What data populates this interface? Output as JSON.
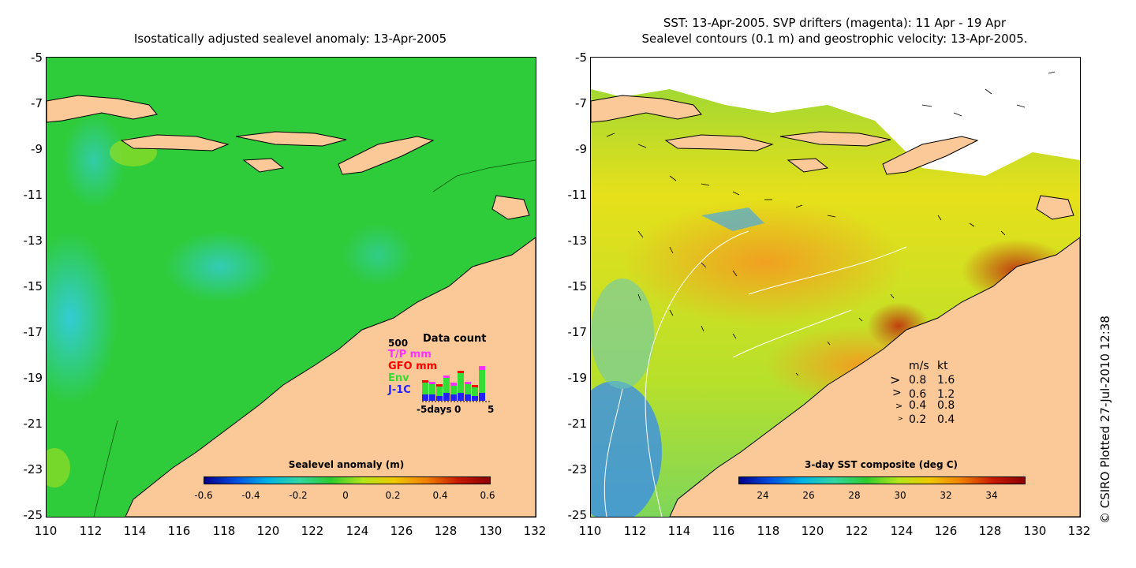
{
  "left_panel": {
    "title": "Isostatically adjusted sealevel anomaly: 13-Apr-2005",
    "y_ticks": [
      "-5",
      "-7",
      "-9",
      "-11",
      "-13",
      "-15",
      "-17",
      "-19",
      "-21",
      "-23",
      "-25"
    ],
    "x_ticks": [
      "110",
      "112",
      "114",
      "116",
      "118",
      "120",
      "122",
      "124",
      "126",
      "128",
      "130",
      "132"
    ],
    "colorbar": {
      "title": "Sealevel anomaly (m)",
      "ticks": [
        "-0.6",
        "-0.4",
        "-0.2",
        "0",
        "0.2",
        "0.4",
        "0.6"
      ]
    },
    "data_count": {
      "title": "Data count",
      "max_label": "500",
      "series": [
        {
          "label": "T/P mm",
          "color": "#ff33ff"
        },
        {
          "label": "GFO mm",
          "color": "#ff0000"
        },
        {
          "label": "Env",
          "color": "#33dd33"
        },
        {
          "label": "J-1C",
          "color": "#2222ff"
        }
      ],
      "x_labels": [
        "-5days",
        "0",
        "5"
      ]
    }
  },
  "right_panel": {
    "title_line1": "SST: 13-Apr-2005. SVP drifters (magenta): 11 Apr - 19 Apr",
    "title_line2": "Sealevel contours (0.1 m) and geostrophic velocity: 13-Apr-2005.",
    "y_ticks": [
      "-5",
      "-7",
      "-9",
      "-11",
      "-13",
      "-15",
      "-17",
      "-19",
      "-21",
      "-23",
      "-25"
    ],
    "x_ticks": [
      "110",
      "112",
      "114",
      "116",
      "118",
      "120",
      "122",
      "124",
      "126",
      "128",
      "130",
      "132"
    ],
    "colorbar": {
      "title": "3-day SST composite (deg C)",
      "ticks": [
        "24",
        "26",
        "28",
        "30",
        "32",
        "34"
      ]
    },
    "velocity_legend": {
      "header_ms": "m/s",
      "header_kt": "kt",
      "rows": [
        {
          "ms": "0.8",
          "kt": "1.6"
        },
        {
          "ms": "0.6",
          "kt": "1.2"
        },
        {
          "ms": "0.4",
          "kt": "0.8"
        },
        {
          "ms": "0.2",
          "kt": "0.4"
        }
      ]
    }
  },
  "credit": "© CSIRO Plotted 27-Jul-2010 12:38",
  "colors": {
    "land": "#fbc898",
    "sla_green": "#2ecc2e",
    "sla_cyan": "#33d6c8",
    "sst_yellow": "#e9e31a",
    "sst_orange": "#f0a020",
    "sst_blue": "#3a8fe8"
  }
}
